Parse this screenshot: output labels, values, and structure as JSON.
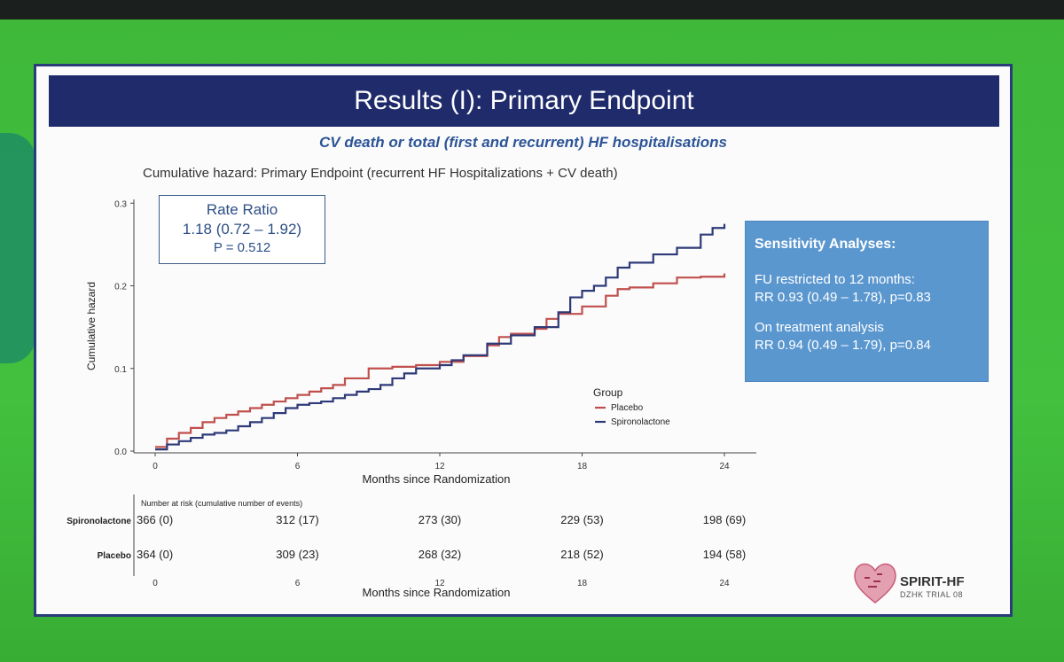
{
  "slide": {
    "title": "Results (I): Primary Endpoint",
    "subtitle": "CV death or total (first and recurrent) HF hospitalisations"
  },
  "rate_ratio": {
    "label": "Rate Ratio",
    "value": "1.18 (0.72 – 1.92)",
    "p": "P = 0.512"
  },
  "sensitivity": {
    "heading": "Sensitivity Analyses:",
    "item1_label": "FU restricted to 12 months:",
    "item1_value": "RR 0.93 (0.49 – 1.78), p=0.83",
    "item2_label": "On treatment analysis",
    "item2_value": "RR 0.94 (0.49 – 1.79), p=0.84"
  },
  "logo": {
    "name": "SPIRIT-HF",
    "sub": "DZHK TRIAL 08"
  },
  "colors": {
    "placebo": "#c0504d",
    "spironolactone": "#2e3a78",
    "title_bar": "#1f2b6b",
    "sens_box": "#5b97cf"
  },
  "chart_data": {
    "type": "line",
    "title": "Cumulative hazard: Primary Endpoint (recurrent HF Hospitalizations + CV death)",
    "xlabel": "Months since Randomization",
    "ylabel": "Cumulative hazard",
    "xlim": [
      0,
      24
    ],
    "ylim": [
      0.0,
      0.3
    ],
    "x_ticks": [
      "0",
      "6",
      "12",
      "18",
      "24"
    ],
    "y_ticks": [
      "0.0",
      "0.1",
      "0.2",
      "0.3"
    ],
    "legend_title": "Group",
    "legend_position": "right",
    "series": [
      {
        "name": "Placebo",
        "x": [
          0,
          0.5,
          1.0,
          1.5,
          2.0,
          2.5,
          3.0,
          3.5,
          4.0,
          4.5,
          5.0,
          5.5,
          6.0,
          6.5,
          7.0,
          7.5,
          8.0,
          9.0,
          10.0,
          11.0,
          12.0,
          13.0,
          14.0,
          14.5,
          15.0,
          16.0,
          16.5,
          17.0,
          18.0,
          19.0,
          19.5,
          20.0,
          21.0,
          22.0,
          23.0,
          24.0
        ],
        "y": [
          0.005,
          0.015,
          0.022,
          0.028,
          0.035,
          0.04,
          0.044,
          0.048,
          0.052,
          0.056,
          0.06,
          0.064,
          0.068,
          0.072,
          0.076,
          0.08,
          0.088,
          0.1,
          0.102,
          0.104,
          0.108,
          0.115,
          0.128,
          0.138,
          0.142,
          0.148,
          0.16,
          0.166,
          0.175,
          0.188,
          0.196,
          0.198,
          0.203,
          0.21,
          0.211,
          0.215
        ]
      },
      {
        "name": "Spironolactone",
        "x": [
          0,
          0.5,
          1.0,
          1.5,
          2.0,
          2.5,
          3.0,
          3.5,
          4.0,
          4.5,
          5.0,
          5.5,
          6.0,
          6.5,
          7.0,
          7.5,
          8.0,
          8.5,
          9.0,
          9.5,
          10.0,
          10.5,
          11.0,
          12.0,
          12.5,
          13.0,
          14.0,
          15.0,
          16.0,
          17.0,
          17.5,
          18.0,
          18.5,
          19.0,
          19.5,
          20.0,
          21.0,
          22.0,
          23.0,
          23.5,
          24.0
        ],
        "y": [
          0.002,
          0.008,
          0.012,
          0.016,
          0.02,
          0.022,
          0.025,
          0.03,
          0.035,
          0.04,
          0.046,
          0.052,
          0.056,
          0.058,
          0.06,
          0.064,
          0.068,
          0.072,
          0.075,
          0.08,
          0.088,
          0.094,
          0.1,
          0.104,
          0.11,
          0.116,
          0.13,
          0.14,
          0.15,
          0.168,
          0.186,
          0.194,
          0.2,
          0.21,
          0.222,
          0.228,
          0.238,
          0.246,
          0.262,
          0.27,
          0.275
        ]
      }
    ],
    "risk_table": {
      "header": "Number at risk (cumulative number of events)",
      "xlabel": "Months since Randomization",
      "x_ticks": [
        "0",
        "6",
        "12",
        "18",
        "24"
      ],
      "rows": [
        {
          "label": "Spironolactone",
          "values": [
            "366 (0)",
            "312 (17)",
            "273 (30)",
            "229 (53)",
            "198 (69)"
          ]
        },
        {
          "label": "Placebo",
          "values": [
            "364 (0)",
            "309 (23)",
            "268 (32)",
            "218 (52)",
            "194 (58)"
          ]
        }
      ]
    }
  }
}
